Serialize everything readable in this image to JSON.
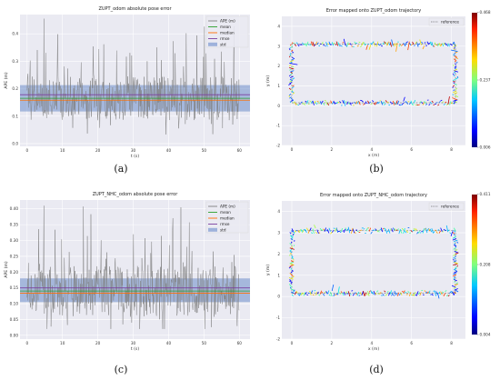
{
  "chart_data": [
    {
      "id": "a",
      "type": "line",
      "title": "ZUPT_odom absolute pose error",
      "xlabel": "t (s)",
      "ylabel": "APE (m)",
      "xlim": [
        -2,
        63
      ],
      "ylim": [
        -0.01,
        0.47
      ],
      "xticks": [
        0,
        10,
        20,
        30,
        40,
        50,
        60
      ],
      "yticks": [
        0.0,
        0.1,
        0.2,
        0.3,
        0.4
      ],
      "ytick_labels": [
        "0.0",
        "0.1",
        "0.2",
        "0.3",
        "0.4"
      ],
      "grid": true,
      "legend_position": "top-right",
      "legend": [
        "APE (m)",
        "mean",
        "median",
        "rmse",
        "std"
      ],
      "stats": {
        "mean": 0.165,
        "median": 0.158,
        "rmse": 0.178,
        "std_low": 0.117,
        "std_high": 0.213
      },
      "colors": {
        "ape": "#7f7f7f",
        "mean": "#2ca02c",
        "median": "#ff6f00",
        "rmse": "#7b3fa0",
        "std": "#6b8ccb"
      },
      "x_range": [
        0,
        60
      ],
      "signal": {
        "min": 0.02,
        "max": 0.455,
        "samples": 480
      },
      "caption": "(a)"
    },
    {
      "id": "b",
      "type": "scatter",
      "title": "Error mapped onto ZUPT_odom trajectory",
      "xlabel": "x (m)",
      "ylabel": "y (m)",
      "xlim": [
        -0.5,
        8.7
      ],
      "ylim": [
        -2,
        4.5
      ],
      "xticks": [
        0,
        2,
        4,
        6,
        8
      ],
      "yticks": [
        -2,
        -1,
        0,
        1,
        2,
        3,
        4
      ],
      "grid": true,
      "legend_position": "top-right",
      "legend": [
        "reference"
      ],
      "colorbar": {
        "min": 0.006,
        "mid": 0.237,
        "max": 0.468,
        "labels": [
          "0.468",
          "0.237",
          "0.006"
        ]
      },
      "path": {
        "x0": 0,
        "y0": 0.15,
        "x1": 8.2,
        "y1": 3.1
      },
      "caption": "(b)"
    },
    {
      "id": "c",
      "type": "line",
      "title": "ZUPT_NHC_odom absolute pose error",
      "xlabel": "t (s)",
      "ylabel": "APE (m)",
      "xlim": [
        -2,
        63
      ],
      "ylim": [
        -0.012,
        0.428
      ],
      "xticks": [
        0,
        10,
        20,
        30,
        40,
        50,
        60
      ],
      "yticks": [
        0.0,
        0.05,
        0.1,
        0.15,
        0.2,
        0.25,
        0.3,
        0.35,
        0.4
      ],
      "ytick_labels": [
        "0.00",
        "0.05",
        "0.10",
        "0.15",
        "0.20",
        "0.25",
        "0.30",
        "0.35",
        "0.40"
      ],
      "grid": true,
      "legend_position": "top-right",
      "legend": [
        "APE (m)",
        "mean",
        "median",
        "rmse",
        "std"
      ],
      "stats": {
        "mean": 0.14,
        "median": 0.133,
        "rmse": 0.15,
        "std_low": 0.105,
        "std_high": 0.18
      },
      "colors": {
        "ape": "#7f7f7f",
        "mean": "#2ca02c",
        "median": "#ff6f00",
        "rmse": "#7b3fa0",
        "std": "#6b8ccb"
      },
      "x_range": [
        0,
        60
      ],
      "signal": {
        "min": 0.02,
        "max": 0.41,
        "samples": 480
      },
      "caption": "(c)"
    },
    {
      "id": "d",
      "type": "scatter",
      "title": "Error mapped onto ZUPT_NHC_odom trajectory",
      "xlabel": "x (m)",
      "ylabel": "y (m)",
      "xlim": [
        -0.5,
        8.7
      ],
      "ylim": [
        -2,
        4.5
      ],
      "xticks": [
        0,
        2,
        4,
        6,
        8
      ],
      "yticks": [
        -2,
        -1,
        0,
        1,
        2,
        3,
        4
      ],
      "grid": true,
      "legend_position": "top-right",
      "legend": [
        "reference"
      ],
      "colorbar": {
        "min": 0.004,
        "mid": 0.208,
        "max": 0.411,
        "labels": [
          "0.411",
          "0.208",
          "0.004"
        ]
      },
      "path": {
        "x0": 0,
        "y0": 0.15,
        "x1": 8.2,
        "y1": 3.1
      },
      "caption": "(d)"
    }
  ]
}
